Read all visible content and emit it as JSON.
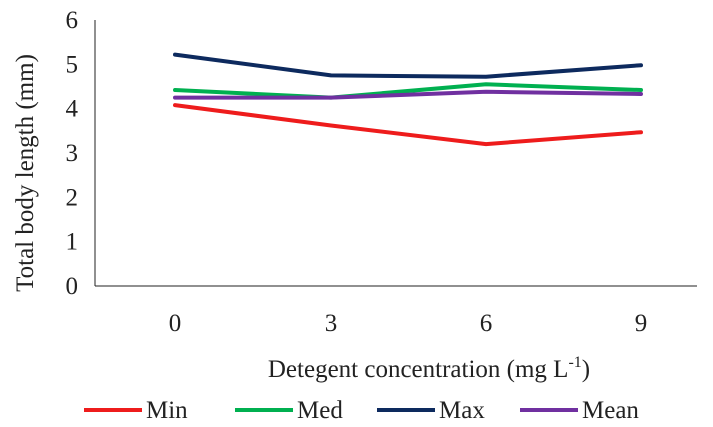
{
  "chart_data": {
    "type": "line",
    "categories": [
      "0",
      "3",
      "6",
      "9"
    ],
    "series": [
      {
        "name": "Min",
        "color": "#ee1c1c",
        "values": [
          4.08,
          3.62,
          3.2,
          3.47
        ]
      },
      {
        "name": "Med",
        "color": "#00b050",
        "values": [
          4.42,
          4.25,
          4.55,
          4.42
        ]
      },
      {
        "name": "Max",
        "color": "#0d2a5e",
        "values": [
          5.22,
          4.75,
          4.72,
          4.98
        ]
      },
      {
        "name": "Mean",
        "color": "#7030a0",
        "values": [
          4.25,
          4.25,
          4.38,
          4.33
        ]
      }
    ],
    "ylim": [
      0,
      6
    ],
    "yticks": [
      "0",
      "1",
      "2",
      "3",
      "4",
      "5",
      "6"
    ],
    "ylabel": "Total body length (mm)",
    "xlabel_main": "Detegent concentration (mg L",
    "xlabel_sup": "-1",
    "xlabel_tail": ")",
    "grid": false,
    "legend_position": "bottom"
  }
}
